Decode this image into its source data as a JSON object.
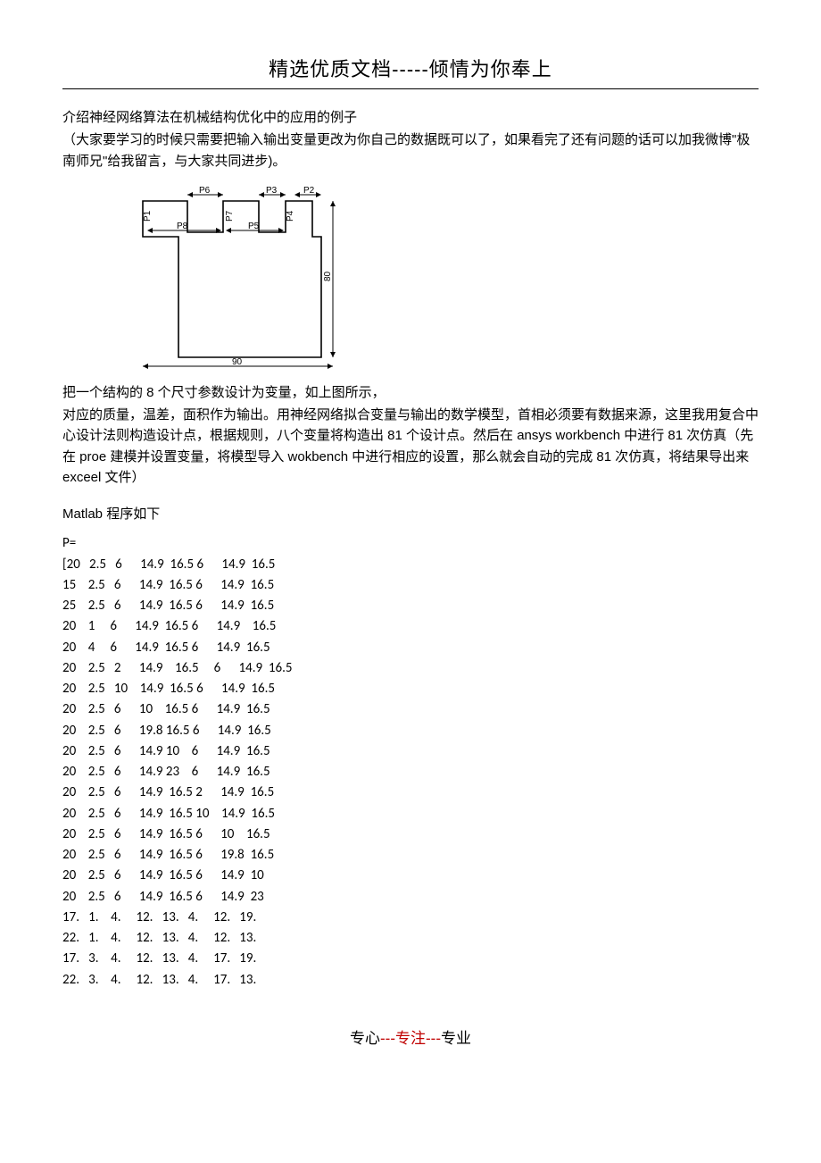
{
  "header": {
    "title": "精选优质文档-----倾情为你奉上"
  },
  "body": {
    "intro1": "介绍神经网络算法在机械结构优化中的应用的例子",
    "intro2": "（大家要学习的时候只需要把输入输出变量更改为你自己的数据既可以了，如果看完了还有问题的话可以加我微博\"极南师兄\"给我留言，与大家共同进步)。",
    "para1": "把一个结构的 8 个尺寸参数设计为变量，如上图所示，",
    "para2": "对应的质量，温差，面积作为输出。用神经网络拟合变量与输出的数学模型，首相必须要有数据来源，这里我用复合中心设计法则构造设计点，根据规则，八个变量将构造出 81 个设计点。然后在 ansys workbench 中进行 81 次仿真（先在 proe 建模并设置变量，将模型导入 wokbench 中进行相应的设置，那么就会自动的完成 81 次仿真，将结果导出来 exceel 文件）",
    "matlab_label": "Matlab 程序如下",
    "p_label": "P="
  },
  "diagram": {
    "labels": {
      "p1": "P1",
      "p2": "P2",
      "p3": "P3",
      "p4": "P4",
      "p5": "P5",
      "p6": "P6",
      "p7": "P7",
      "p8": "P8",
      "width": "90",
      "height": "80"
    },
    "stroke": "#000000",
    "stroke_width": 1.5,
    "font_size": 10
  },
  "data_table": {
    "rows": [
      "[20   2.5   6      14.9  16.5 6      14.9  16.5",
      "15    2.5   6      14.9  16.5 6      14.9  16.5",
      "25    2.5   6      14.9  16.5 6      14.9  16.5",
      "20    1     6      14.9  16.5 6      14.9    16.5",
      "20    4     6      14.9  16.5 6      14.9  16.5",
      "20    2.5   2      14.9    16.5     6      14.9  16.5",
      "20    2.5   10    14.9  16.5 6      14.9  16.5",
      "20    2.5   6      10    16.5 6      14.9  16.5",
      "20    2.5   6      19.8 16.5 6      14.9  16.5",
      "20    2.5   6      14.9 10    6      14.9  16.5",
      "20    2.5   6      14.9 23    6      14.9  16.5",
      "20    2.5   6      14.9  16.5 2      14.9  16.5",
      "20    2.5   6      14.9  16.5 10    14.9  16.5",
      "20    2.5   6      14.9  16.5 6      10    16.5",
      "20    2.5   6      14.9  16.5 6      19.8  16.5",
      "20    2.5   6      14.9  16.5 6      14.9  10",
      "20    2.5   6      14.9  16.5 6      14.9  23",
      "17.   1.    4.     12.   13.   4.     12.   19.",
      "22.   1.    4.     12.   13.   4.     12.   13.",
      "17.   3.    4.     12.   13.   4.     17.   19.",
      "22.   3.    4.     12.   13.   4.     17.   13."
    ]
  },
  "footer": {
    "part1": "专心",
    "part2": "---专注---",
    "part3": "专业"
  }
}
